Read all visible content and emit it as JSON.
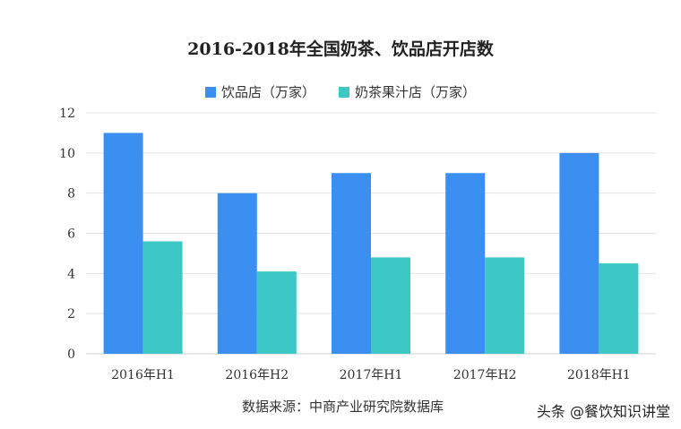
{
  "chart_data": {
    "type": "bar",
    "title": "2016-2018年全国奶茶、饮品店开店数",
    "categories": [
      "2016年H1",
      "2016年H2",
      "2017年H1",
      "2017年H2",
      "2018年H1"
    ],
    "series": [
      {
        "name": "饮品店（万家）",
        "values": [
          11,
          8,
          9,
          9,
          10
        ],
        "color": "#3a8ff0"
      },
      {
        "name": "奶茶果汁店（万家）",
        "values": [
          5.6,
          4.1,
          4.8,
          4.8,
          4.5
        ],
        "color": "#3ec8c5"
      }
    ],
    "ylim": [
      0,
      12
    ],
    "yticks": [
      0,
      2,
      4,
      6,
      8,
      10,
      12
    ],
    "grid": true,
    "legend_position": "top"
  },
  "source_note": "数据来源：中商产业研究院数据库",
  "watermark": "头条 @餐饮知识讲堂"
}
